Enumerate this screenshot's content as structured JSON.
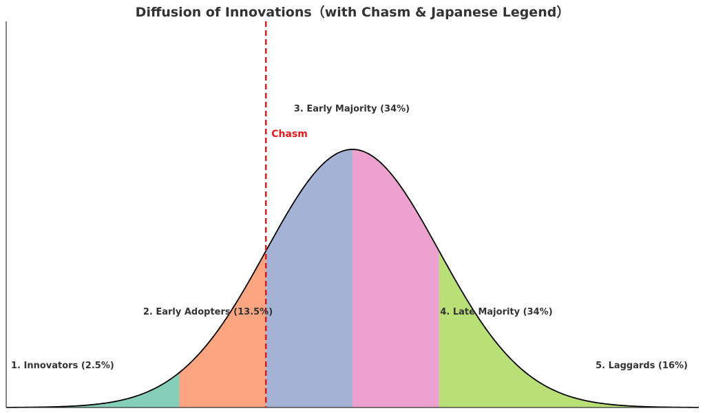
{
  "chart_data": {
    "type": "area",
    "title": "Diffusion of Innovations（with Chasm & Japanese Legend）",
    "xlabel": "",
    "ylabel": "",
    "distribution": {
      "kind": "normal",
      "mean": 0,
      "std": 1
    },
    "xlim": [
      -4,
      4
    ],
    "grid": false,
    "segments": [
      {
        "label": "1. Innovators (2.5%)",
        "share": 2.5,
        "from": -4,
        "to": -2,
        "color": "#66c2a5"
      },
      {
        "label": "2. Early Adopters (13.5%)",
        "share": 13.5,
        "from": -2,
        "to": -1,
        "color": "#fc8d62"
      },
      {
        "label": "3. Early Majority (34%)",
        "share": 34,
        "from": -1,
        "to": 0,
        "color": "#8da0cb"
      },
      {
        "label": "4. Late Majority (34%)",
        "share": 34,
        "from": 0,
        "to": 1,
        "color": "#e78ac3"
      },
      {
        "label": "5. Laggards (16%)",
        "share": 16,
        "from": 1,
        "to": 4,
        "color": "#a6d854"
      }
    ],
    "chasm": {
      "label": "Chasm",
      "x": -1,
      "color": "#e31a1c"
    },
    "curve_color": "#000000"
  }
}
